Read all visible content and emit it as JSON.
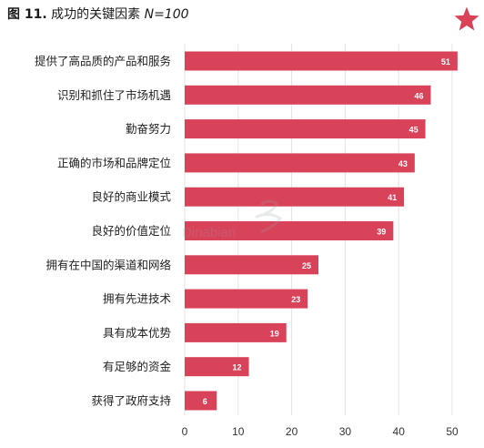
{
  "title": {
    "figure_label": "图 11.",
    "text": "成功的关键因素",
    "n_label": "N=100"
  },
  "brand_color": "#d9435a",
  "icons": {
    "logo": "pink-star-icon",
    "watermark": "tuoniao-watermark"
  },
  "watermark_text": "Dinabian",
  "chart_data": {
    "type": "bar",
    "orientation": "horizontal",
    "title": "成功的关键因素",
    "categories": [
      "提供了高品质的产品和服务",
      "识别和抓住了市场机遇",
      "勤奋努力",
      "正确的市场和品牌定位",
      "良好的商业模式",
      "良好的价值定位",
      "拥有在中国的渠道和网络",
      "拥有先进技术",
      "具有成本优势",
      "有足够的资金",
      "获得了政府支持"
    ],
    "values": [
      51,
      46,
      45,
      43,
      41,
      39,
      25,
      23,
      19,
      12,
      6
    ],
    "xlim": [
      0,
      50
    ],
    "xticks": [
      0,
      10,
      20,
      30,
      40,
      50
    ],
    "grid": "vertical",
    "data_labels": true,
    "bar_color": "#d9435a"
  }
}
